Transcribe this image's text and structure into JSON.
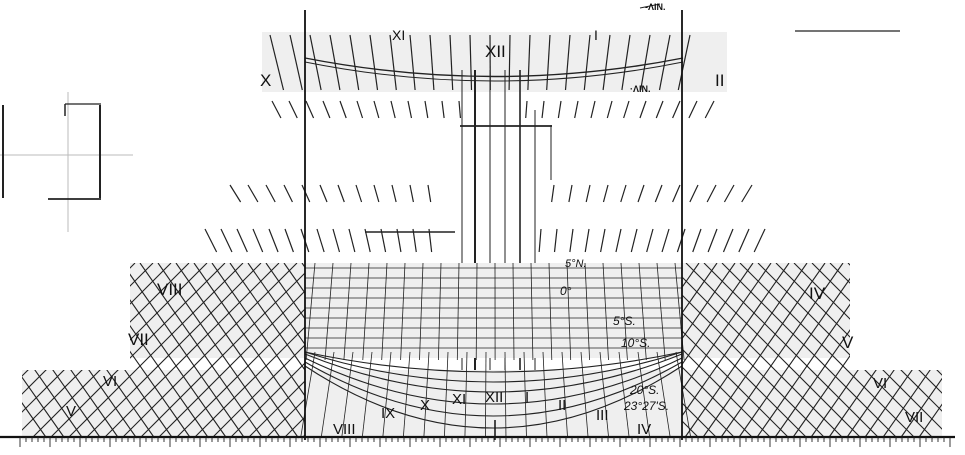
{
  "diagram": {
    "top_fragment_label": "-ΛIN.",
    "mid_fragment_label": "·ΛIN.",
    "hour_labels": {
      "top_left_xi": "XI",
      "top_xii": "XII",
      "top_left_x": "X",
      "top_right_i": "I",
      "top_right_ii": "II",
      "left_viii": "VIII",
      "left_vii": "VII",
      "left_vi": "VI",
      "left_v": "V",
      "right_iv": "IV",
      "right_v": "V",
      "right_vi": "VI",
      "right_vii": "VII",
      "bottom_viii": "VIII",
      "bottom_ix": "IX",
      "bottom_x": "X",
      "bottom_xi": "XI",
      "bottom_xii": "XII",
      "bottom_i": "I",
      "bottom_ii": "II",
      "bottom_iii": "III",
      "bottom_iv": "IV"
    },
    "declination_labels": {
      "n5": "5°N.",
      "zero": "0°",
      "s5": "5°S.",
      "s10": "10°S.",
      "s20": "20°S.",
      "s23": "23°27'S."
    }
  }
}
